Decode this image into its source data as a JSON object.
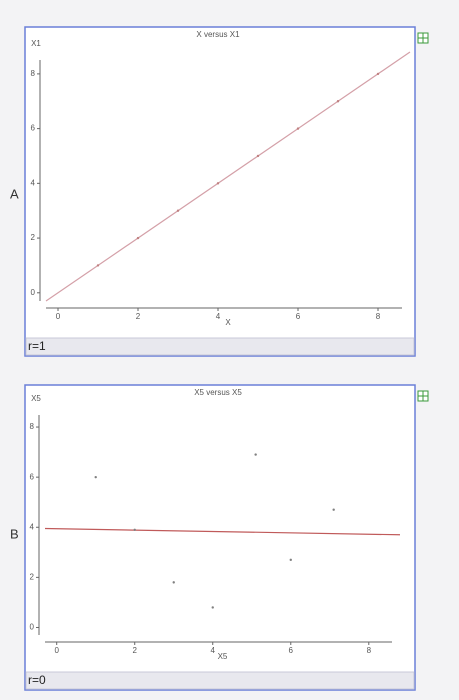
{
  "chart_data": [
    {
      "type": "scatter",
      "panel": "A",
      "title": "X versus X1",
      "x_label": "X",
      "y_label": "X1",
      "annotation": "r=1",
      "x": [
        1,
        2,
        3,
        4,
        5,
        6,
        7,
        8
      ],
      "y": [
        1,
        2,
        3,
        4,
        5,
        6,
        7,
        8
      ],
      "color": "#c08080",
      "fit_line": {
        "x": [
          -0.3,
          8.8
        ],
        "y": [
          -0.3,
          8.8
        ],
        "color": "#d4a0a8"
      },
      "xlim": [
        -0.3,
        8.8
      ],
      "ylim": [
        -0.3,
        8.8
      ],
      "xticks": [
        0,
        2,
        4,
        6,
        8
      ],
      "yticks": [
        0,
        2,
        4,
        6,
        8
      ]
    },
    {
      "type": "scatter",
      "panel": "B",
      "title": "X5 versus X5",
      "x_label": "X5",
      "y_label": "X5",
      "annotation": "r=0",
      "x": [
        1,
        2,
        3,
        4,
        5.1,
        6,
        7.1
      ],
      "y": [
        6,
        3.9,
        1.8,
        0.8,
        6.9,
        2.7,
        4.7
      ],
      "color": "#808080",
      "fit_line": {
        "x": [
          -0.3,
          8.8
        ],
        "y": [
          3.95,
          3.7
        ],
        "color": "#c05a5a"
      },
      "xlim": [
        -0.3,
        8.8
      ],
      "ylim": [
        -0.3,
        8.8
      ],
      "xticks": [
        0,
        2,
        4,
        6,
        8
      ],
      "yticks": [
        0,
        2,
        4,
        6,
        8
      ]
    }
  ]
}
